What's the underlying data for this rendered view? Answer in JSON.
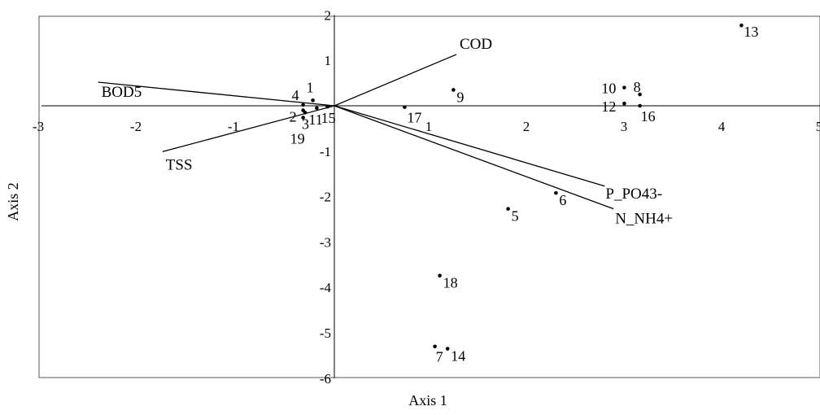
{
  "chart_data": {
    "type": "scatter",
    "subtype": "biplot",
    "title": "",
    "xlabel": "Axis 1",
    "ylabel": "Axis 2",
    "xlim": [
      -3,
      5
    ],
    "ylim": [
      -6,
      2
    ],
    "x_ticks": [
      -3,
      -2,
      -1,
      1,
      2,
      3,
      4,
      5
    ],
    "y_ticks": [
      2,
      1,
      -1,
      -2,
      -3,
      -4,
      -5,
      -6
    ],
    "grid": false,
    "legend": "none",
    "points": [
      {
        "label": "1",
        "x": -0.22,
        "y": 0.12
      },
      {
        "label": "2",
        "x": -0.32,
        "y": -0.1
      },
      {
        "label": "3",
        "x": -0.3,
        "y": -0.15
      },
      {
        "label": "4",
        "x": -0.32,
        "y": 0.02
      },
      {
        "label": "5",
        "x": 1.78,
        "y": -2.27
      },
      {
        "label": "6",
        "x": 2.27,
        "y": -1.92
      },
      {
        "label": "7",
        "x": 1.03,
        "y": -5.3
      },
      {
        "label": "8",
        "x": 3.13,
        "y": 0.25
      },
      {
        "label": "9",
        "x": 1.22,
        "y": 0.35
      },
      {
        "label": "10",
        "x": 2.97,
        "y": 0.4
      },
      {
        "label": "11",
        "x": -0.18,
        "y": -0.05
      },
      {
        "label": "12",
        "x": 2.97,
        "y": 0.05
      },
      {
        "label": "13",
        "x": 4.17,
        "y": 1.77
      },
      {
        "label": "14",
        "x": 1.16,
        "y": -5.35
      },
      {
        "label": "15",
        "x": -0.07,
        "y": -0.02
      },
      {
        "label": "16",
        "x": 3.13,
        "y": 0.0
      },
      {
        "label": "17",
        "x": 0.72,
        "y": -0.03
      },
      {
        "label": "18",
        "x": 1.08,
        "y": -3.74
      },
      {
        "label": "19",
        "x": -0.32,
        "y": -0.26
      }
    ],
    "vectors": [
      {
        "label": "COD",
        "x": 1.25,
        "y": 1.13
      },
      {
        "label": "BOD5",
        "x": -2.42,
        "y": 0.52
      },
      {
        "label": "TSS",
        "x": -1.76,
        "y": -1.01
      },
      {
        "label": "P_PO43-",
        "x": 2.77,
        "y": -1.77
      },
      {
        "label": "N_NH4+",
        "x": 2.86,
        "y": -2.27
      }
    ]
  }
}
